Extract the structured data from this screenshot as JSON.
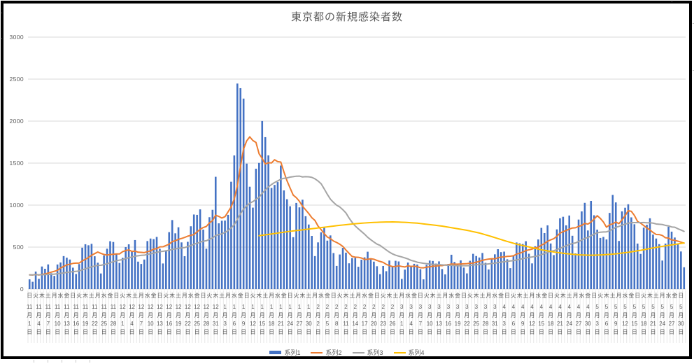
{
  "chart_data": {
    "type": "bar",
    "combo": "bar + 3 lines",
    "title": "東京都の新規感染者数",
    "colors": {
      "background": "#FFFFFF",
      "frame": "#000000",
      "text": "#595959",
      "gridline": "#D9D9D9",
      "category_tick": "#E7E7E7"
    },
    "y_axis": {
      "min": 0,
      "max": 3000,
      "step": 500,
      "tick_labels": [
        "0",
        "500",
        "1000",
        "1500",
        "2000",
        "2500",
        "3000"
      ]
    },
    "x_axis": {
      "num_days": 212,
      "start_label": "11月1日",
      "end_label": "5月30日",
      "date_label_interval_days": 3,
      "date_tick_labels": [
        "11月1日",
        "11月4日",
        "11月7日",
        "11月10日",
        "11月13日",
        "11月16日",
        "11月19日",
        "11月22日",
        "11月25日",
        "11月28日",
        "12月1日",
        "12月4日",
        "12月7日",
        "12月10日",
        "12月13日",
        "12月16日",
        "12月19日",
        "12月22日",
        "12月25日",
        "12月28日",
        "12月31日",
        "1月3日",
        "1月6日",
        "1月9日",
        "1月12日",
        "1月15日",
        "1月18日",
        "1月21日",
        "1月24日",
        "1月27日",
        "1月30日",
        "2月2日",
        "2月5日",
        "2月8日",
        "2月11日",
        "2月14日",
        "2月17日",
        "2月20日",
        "2月23日",
        "2月26日",
        "3月1日",
        "3月4日",
        "3月7日",
        "3月10日",
        "3月13日",
        "3月16日",
        "3月19日",
        "3月22日",
        "3月25日",
        "3月28日",
        "3月31日",
        "4月3日",
        "4月6日",
        "4月9日",
        "4月12日",
        "4月15日",
        "4月18日",
        "4月21日",
        "4月24日",
        "4月27日",
        "4月30日",
        "5月3日",
        "5月6日",
        "5月9日",
        "5月12日",
        "5月15日",
        "5月18日",
        "5月21日",
        "5月24日",
        "5月27日",
        "5月30日"
      ],
      "weekday_label_interval_days": 2,
      "weekday_label_cycle": [
        "日",
        "火",
        "木",
        "土",
        "月",
        "水",
        "金"
      ],
      "month_char": "月",
      "day_char": "日"
    },
    "series": [
      {
        "name": "系列1",
        "type": "bar",
        "color": "#4472C4",
        "values": [
          116,
          87,
          209,
          122,
          269,
          242,
          294,
          189,
          157,
          293,
          317,
          393,
          374,
          352,
          255,
          180,
          298,
          493,
          534,
          522,
          539,
          391,
          314,
          186,
          401,
          481,
          570,
          561,
          418,
          311,
          372,
          500,
          533,
          449,
          584,
          327,
          299,
          352,
          572,
          602,
          595,
          621,
          480,
          305,
          460,
          678,
          822,
          664,
          736,
          556,
          392,
          563,
          748,
          888,
          884,
          949,
          708,
          481,
          856,
          944,
          1337,
          783,
          814,
          816,
          884,
          1278,
          1591,
          2447,
          2392,
          2268,
          1494,
          1219,
          970,
          1433,
          1502,
          2001,
          1809,
          1592,
          1204,
          1240,
          1274,
          1471,
          1175,
          1070,
          986,
          618,
          1026,
          973,
          1064,
          868,
          769,
          633,
          393,
          556,
          676,
          734,
          577,
          639,
          429,
          276,
          412,
          491,
          434,
          307,
          369,
          371,
          266,
          350,
          378,
          445,
          353,
          327,
          272,
          178,
          275,
          213,
          340,
          270,
          337,
          329,
          121,
          232,
          316,
          279,
          301,
          293,
          237,
          116,
          290,
          340,
          335,
          304,
          330,
          239,
          175,
          300,
          409,
          323,
          303,
          342,
          256,
          187,
          337,
          420,
          394,
          376,
          430,
          313,
          234,
          364,
          414,
          475,
          440,
          446,
          355,
          249,
          399,
          555,
          545,
          537,
          570,
          421,
          306,
          510,
          591,
          729,
          667,
          759,
          543,
          405,
          711,
          843,
          861,
          759,
          876,
          635,
          425,
          828,
          925,
          1027,
          698,
          1050,
          879,
          708,
          609,
          621,
          591,
          907,
          1121,
          1032,
          573,
          925,
          969,
          1010,
          854,
          772,
          542,
          419,
          732,
          766,
          843,
          649,
          602,
          535,
          340,
          542,
          743,
          684,
          614,
          539,
          448,
          260
        ]
      },
      {
        "name": "系列2",
        "type": "line",
        "color": "#ED7D31",
        "derivation": "7-day moving average of 系列1",
        "window": 7
      },
      {
        "name": "系列3",
        "type": "line",
        "color": "#A5A5A5",
        "derivation": "28-day moving average of 系列1",
        "window": 28
      },
      {
        "name": "系列4",
        "type": "line",
        "color": "#FFC000",
        "points_day_index": [
          75,
          80,
          85,
          90,
          95,
          100,
          105,
          110,
          114,
          118,
          122,
          126,
          130,
          134,
          138,
          142,
          146,
          150,
          154,
          158,
          162,
          166,
          170,
          174,
          178,
          182,
          186,
          190,
          194,
          198,
          202,
          206,
          209,
          212
        ],
        "points_value": [
          635,
          662,
          688,
          710,
          732,
          755,
          775,
          790,
          797,
          800,
          795,
          785,
          768,
          750,
          725,
          700,
          668,
          625,
          578,
          535,
          502,
          468,
          442,
          422,
          408,
          403,
          408,
          420,
          438,
          462,
          490,
          515,
          532,
          550
        ]
      }
    ],
    "moving_average_lead_in_values": [
      235,
      196,
      207,
      108,
      66,
      177,
      142,
      248,
      203,
      249,
      146,
      78,
      166,
      177,
      284,
      184,
      235,
      132,
      78,
      139,
      150,
      185,
      186,
      203,
      124,
      102,
      158,
      171,
      221,
      204,
      215
    ],
    "legend": {
      "position": "bottom"
    }
  }
}
